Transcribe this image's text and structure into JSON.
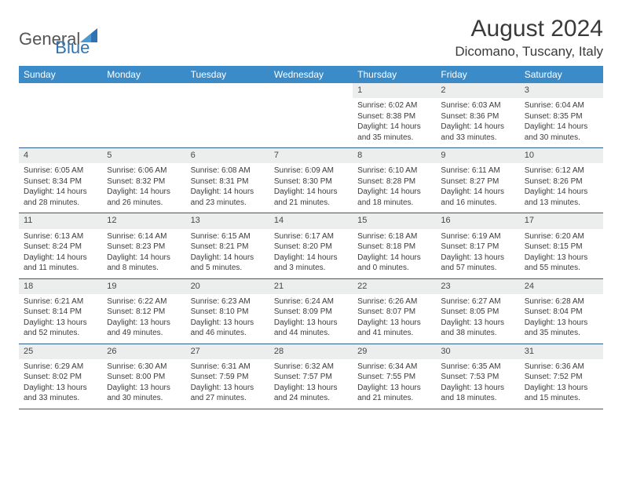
{
  "brand": {
    "text1": "General",
    "text2": "Blue",
    "color_general": "#555558",
    "color_blue": "#2e74b5",
    "triangle_color": "#2e74b5"
  },
  "title": "August 2024",
  "location": "Dicomano, Tuscany, Italy",
  "colors": {
    "header_bg": "#3b8bc8",
    "header_text": "#ffffff",
    "daynum_bg": "#eceded",
    "daynum_text": "#464749",
    "body_text": "#3b3b3b",
    "week_border": "#2e5c8a",
    "page_bg": "#ffffff"
  },
  "dayNames": [
    "Sunday",
    "Monday",
    "Tuesday",
    "Wednesday",
    "Thursday",
    "Friday",
    "Saturday"
  ],
  "weeks": [
    [
      null,
      null,
      null,
      null,
      {
        "num": "1",
        "sunrise": "Sunrise: 6:02 AM",
        "sunset": "Sunset: 8:38 PM",
        "daylight": "Daylight: 14 hours and 35 minutes."
      },
      {
        "num": "2",
        "sunrise": "Sunrise: 6:03 AM",
        "sunset": "Sunset: 8:36 PM",
        "daylight": "Daylight: 14 hours and 33 minutes."
      },
      {
        "num": "3",
        "sunrise": "Sunrise: 6:04 AM",
        "sunset": "Sunset: 8:35 PM",
        "daylight": "Daylight: 14 hours and 30 minutes."
      }
    ],
    [
      {
        "num": "4",
        "sunrise": "Sunrise: 6:05 AM",
        "sunset": "Sunset: 8:34 PM",
        "daylight": "Daylight: 14 hours and 28 minutes."
      },
      {
        "num": "5",
        "sunrise": "Sunrise: 6:06 AM",
        "sunset": "Sunset: 8:32 PM",
        "daylight": "Daylight: 14 hours and 26 minutes."
      },
      {
        "num": "6",
        "sunrise": "Sunrise: 6:08 AM",
        "sunset": "Sunset: 8:31 PM",
        "daylight": "Daylight: 14 hours and 23 minutes."
      },
      {
        "num": "7",
        "sunrise": "Sunrise: 6:09 AM",
        "sunset": "Sunset: 8:30 PM",
        "daylight": "Daylight: 14 hours and 21 minutes."
      },
      {
        "num": "8",
        "sunrise": "Sunrise: 6:10 AM",
        "sunset": "Sunset: 8:28 PM",
        "daylight": "Daylight: 14 hours and 18 minutes."
      },
      {
        "num": "9",
        "sunrise": "Sunrise: 6:11 AM",
        "sunset": "Sunset: 8:27 PM",
        "daylight": "Daylight: 14 hours and 16 minutes."
      },
      {
        "num": "10",
        "sunrise": "Sunrise: 6:12 AM",
        "sunset": "Sunset: 8:26 PM",
        "daylight": "Daylight: 14 hours and 13 minutes."
      }
    ],
    [
      {
        "num": "11",
        "sunrise": "Sunrise: 6:13 AM",
        "sunset": "Sunset: 8:24 PM",
        "daylight": "Daylight: 14 hours and 11 minutes."
      },
      {
        "num": "12",
        "sunrise": "Sunrise: 6:14 AM",
        "sunset": "Sunset: 8:23 PM",
        "daylight": "Daylight: 14 hours and 8 minutes."
      },
      {
        "num": "13",
        "sunrise": "Sunrise: 6:15 AM",
        "sunset": "Sunset: 8:21 PM",
        "daylight": "Daylight: 14 hours and 5 minutes."
      },
      {
        "num": "14",
        "sunrise": "Sunrise: 6:17 AM",
        "sunset": "Sunset: 8:20 PM",
        "daylight": "Daylight: 14 hours and 3 minutes."
      },
      {
        "num": "15",
        "sunrise": "Sunrise: 6:18 AM",
        "sunset": "Sunset: 8:18 PM",
        "daylight": "Daylight: 14 hours and 0 minutes."
      },
      {
        "num": "16",
        "sunrise": "Sunrise: 6:19 AM",
        "sunset": "Sunset: 8:17 PM",
        "daylight": "Daylight: 13 hours and 57 minutes."
      },
      {
        "num": "17",
        "sunrise": "Sunrise: 6:20 AM",
        "sunset": "Sunset: 8:15 PM",
        "daylight": "Daylight: 13 hours and 55 minutes."
      }
    ],
    [
      {
        "num": "18",
        "sunrise": "Sunrise: 6:21 AM",
        "sunset": "Sunset: 8:14 PM",
        "daylight": "Daylight: 13 hours and 52 minutes."
      },
      {
        "num": "19",
        "sunrise": "Sunrise: 6:22 AM",
        "sunset": "Sunset: 8:12 PM",
        "daylight": "Daylight: 13 hours and 49 minutes."
      },
      {
        "num": "20",
        "sunrise": "Sunrise: 6:23 AM",
        "sunset": "Sunset: 8:10 PM",
        "daylight": "Daylight: 13 hours and 46 minutes."
      },
      {
        "num": "21",
        "sunrise": "Sunrise: 6:24 AM",
        "sunset": "Sunset: 8:09 PM",
        "daylight": "Daylight: 13 hours and 44 minutes."
      },
      {
        "num": "22",
        "sunrise": "Sunrise: 6:26 AM",
        "sunset": "Sunset: 8:07 PM",
        "daylight": "Daylight: 13 hours and 41 minutes."
      },
      {
        "num": "23",
        "sunrise": "Sunrise: 6:27 AM",
        "sunset": "Sunset: 8:05 PM",
        "daylight": "Daylight: 13 hours and 38 minutes."
      },
      {
        "num": "24",
        "sunrise": "Sunrise: 6:28 AM",
        "sunset": "Sunset: 8:04 PM",
        "daylight": "Daylight: 13 hours and 35 minutes."
      }
    ],
    [
      {
        "num": "25",
        "sunrise": "Sunrise: 6:29 AM",
        "sunset": "Sunset: 8:02 PM",
        "daylight": "Daylight: 13 hours and 33 minutes."
      },
      {
        "num": "26",
        "sunrise": "Sunrise: 6:30 AM",
        "sunset": "Sunset: 8:00 PM",
        "daylight": "Daylight: 13 hours and 30 minutes."
      },
      {
        "num": "27",
        "sunrise": "Sunrise: 6:31 AM",
        "sunset": "Sunset: 7:59 PM",
        "daylight": "Daylight: 13 hours and 27 minutes."
      },
      {
        "num": "28",
        "sunrise": "Sunrise: 6:32 AM",
        "sunset": "Sunset: 7:57 PM",
        "daylight": "Daylight: 13 hours and 24 minutes."
      },
      {
        "num": "29",
        "sunrise": "Sunrise: 6:34 AM",
        "sunset": "Sunset: 7:55 PM",
        "daylight": "Daylight: 13 hours and 21 minutes."
      },
      {
        "num": "30",
        "sunrise": "Sunrise: 6:35 AM",
        "sunset": "Sunset: 7:53 PM",
        "daylight": "Daylight: 13 hours and 18 minutes."
      },
      {
        "num": "31",
        "sunrise": "Sunrise: 6:36 AM",
        "sunset": "Sunset: 7:52 PM",
        "daylight": "Daylight: 13 hours and 15 minutes."
      }
    ]
  ]
}
